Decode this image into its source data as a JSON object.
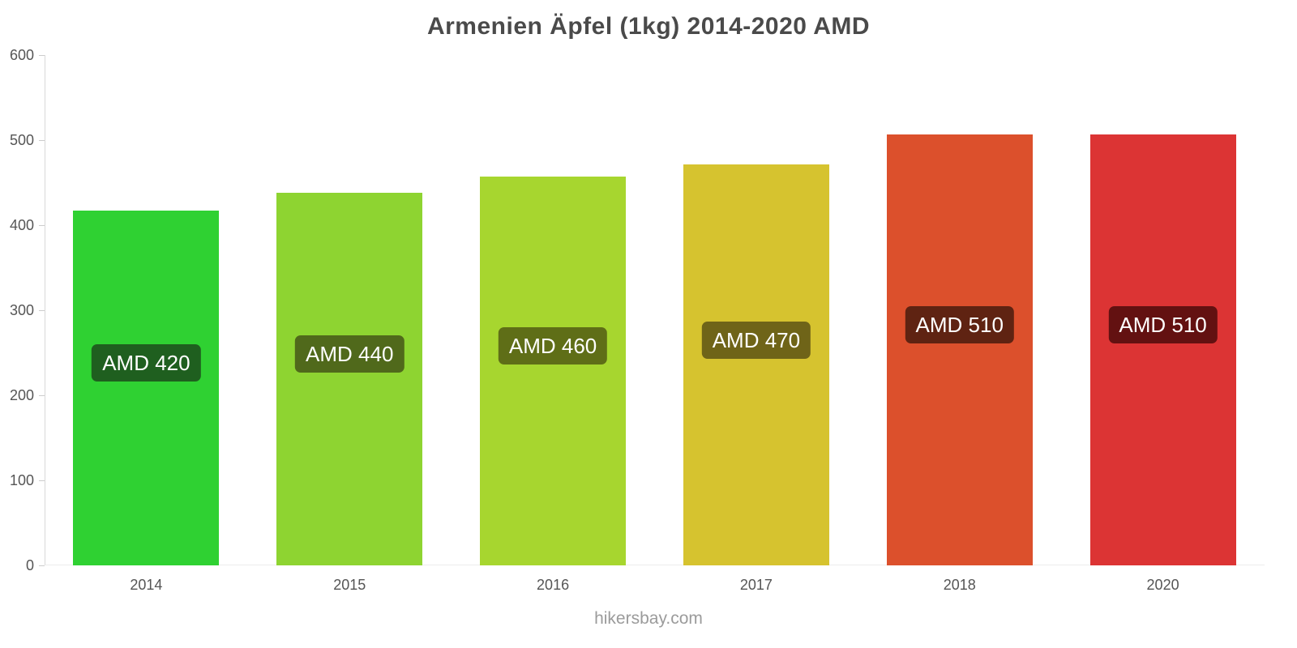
{
  "page": {
    "title": "Armenien Äpfel (1kg) 2014-2020 AMD",
    "footer": "hikersbay.com"
  },
  "chart_data": {
    "type": "bar",
    "title": "Armenien Äpfel (1kg) 2014-2020 AMD",
    "categories": [
      "2014",
      "2015",
      "2016",
      "2017",
      "2018",
      "2020"
    ],
    "values": [
      417,
      438,
      457,
      471,
      507,
      507
    ],
    "bar_labels": [
      "AMD 420",
      "AMD 440",
      "AMD 460",
      "AMD 470",
      "AMD 510",
      "AMD 510"
    ],
    "bar_colors": [
      "#2fd132",
      "#8ed431",
      "#a7d62f",
      "#d6c32f",
      "#dc502c",
      "#dc3434"
    ],
    "label_bg_colors": [
      "#1f5f1f",
      "#50691b",
      "#5f6e17",
      "#6f6418",
      "#5f2312",
      "#631111"
    ],
    "xlabel": "",
    "ylabel": "",
    "ylim": [
      0,
      600
    ],
    "yticks": [
      0,
      100,
      200,
      300,
      400,
      500,
      600
    ],
    "grid": false,
    "legend": false
  }
}
